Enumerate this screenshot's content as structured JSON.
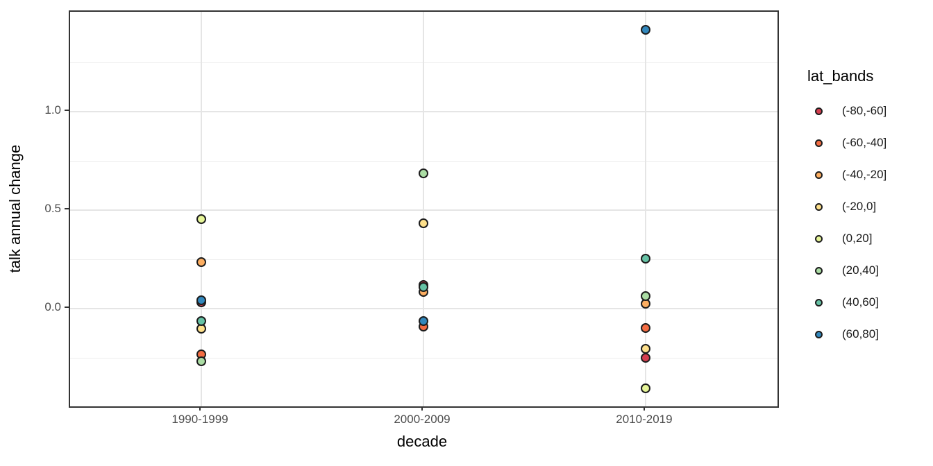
{
  "chart_data": {
    "type": "scatter",
    "title": "",
    "xlabel": "decade",
    "ylabel": "talk annual change",
    "categories": [
      "1990-1999",
      "2000-2009",
      "2010-2019"
    ],
    "series": [
      {
        "name": "(-80,-60]",
        "color": "#D53E4F",
        "values": [
          0.032,
          0.12,
          -0.25
        ]
      },
      {
        "name": "(-60,-40]",
        "color": "#F46D43",
        "values": [
          -0.232,
          -0.092,
          -0.099
        ]
      },
      {
        "name": "(-40,-20]",
        "color": "#FDAE61",
        "values": [
          0.236,
          0.086,
          0.026
        ]
      },
      {
        "name": "(-20,0]",
        "color": "#FEE08B",
        "values": [
          -0.101,
          0.434,
          -0.204
        ]
      },
      {
        "name": "(0,20]",
        "color": "#E6F598",
        "values": [
          0.457,
          null,
          -0.405
        ]
      },
      {
        "name": "(20,40]",
        "color": "#ABDDA4",
        "values": [
          -0.266,
          0.687,
          0.064
        ]
      },
      {
        "name": "(40,60]",
        "color": "#66C2A5",
        "values": [
          -0.062,
          0.11,
          0.254
        ]
      },
      {
        "name": "(60,80]",
        "color": "#3288BD",
        "values": [
          0.043,
          -0.063,
          1.416
        ]
      }
    ],
    "y_ticks": [
      {
        "label": "1.0",
        "value": 1.0
      },
      {
        "label": "0.5",
        "value": 0.5
      },
      {
        "label": "0.0",
        "value": 0.0
      }
    ],
    "y_minor_gridlines": [
      -0.25,
      0.25,
      0.75,
      1.25
    ],
    "ylim": [
      -0.496,
      1.509
    ],
    "grid": true,
    "legend": {
      "title": "lat_bands",
      "position": "right"
    }
  },
  "colors": {
    "major_gridline": "#e5e5e5",
    "minor_gridline": "#ededed",
    "panel_border": "#333333",
    "tick_mark": "#333333",
    "tick_label": "#4d4d4d",
    "axis_title": "#000000",
    "point_stroke": "#1c1c1c",
    "background": "#ffffff"
  }
}
